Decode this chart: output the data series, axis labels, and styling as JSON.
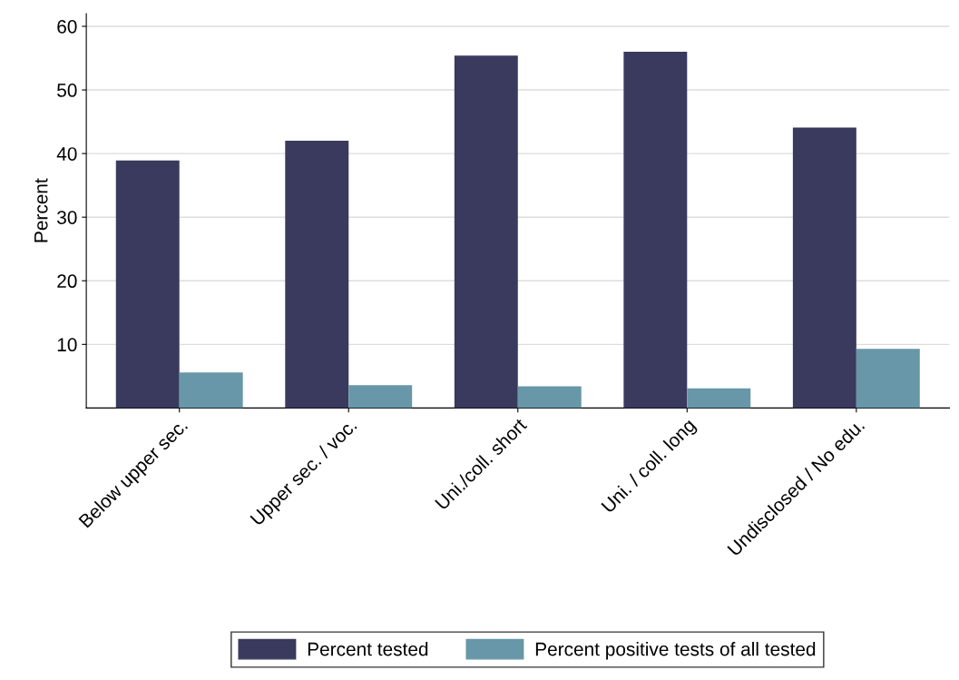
{
  "chart_data": {
    "type": "bar",
    "ylabel": "Percent",
    "categories": [
      "Below upper sec.",
      "Upper sec. / voc.",
      "Uni./coll. short",
      "Uni. / coll. long",
      "Undisclosed / No edu."
    ],
    "series": [
      {
        "name": "Percent tested",
        "color": "#3a3a5e",
        "values": [
          38.9,
          42.0,
          55.4,
          56.0,
          44.1
        ]
      },
      {
        "name": "Percent positive tests of all tested",
        "color": "#6797a8",
        "values": [
          5.6,
          3.6,
          3.4,
          3.1,
          9.3
        ]
      }
    ],
    "ylim": [
      0,
      62
    ],
    "yticks": [
      10,
      20,
      30,
      40,
      50,
      60
    ],
    "grid": "y",
    "legend": "bottom"
  }
}
